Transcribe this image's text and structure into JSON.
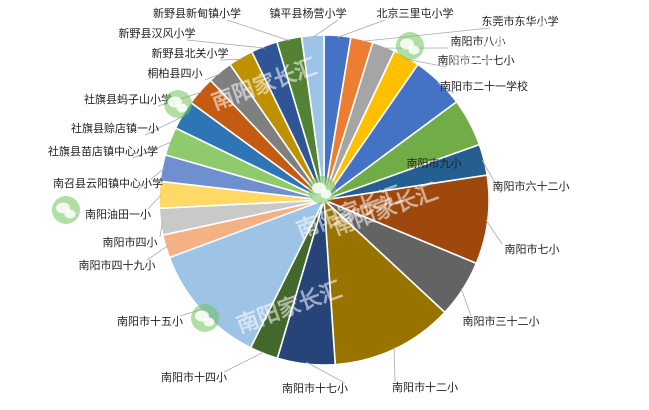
{
  "chart_data": {
    "type": "pie",
    "title": "",
    "slices": [
      {
        "label": "北京三里屯小学",
        "value": 3.0,
        "color": "#4472C4"
      },
      {
        "label": "东莞市东华小学",
        "value": 2.5,
        "color": "#ED7D31"
      },
      {
        "label": "南阳市八小",
        "value": 2.6,
        "color": "#A5A5A5"
      },
      {
        "label": "南阳市二十七小",
        "value": 3.0,
        "color": "#FFC000"
      },
      {
        "label": "南阳市二十一学校",
        "value": 6.0,
        "color": "#4472C4"
      },
      {
        "label": "南阳市九小",
        "value": 5.4,
        "color": "#70AD47"
      },
      {
        "label": "南阳市六十二小",
        "value": 3.5,
        "color": "#255E91"
      },
      {
        "label": "南阳市七小",
        "value": 10.0,
        "color": "#9E480E"
      },
      {
        "label": "南阳市三十二小",
        "value": 6.5,
        "color": "#636363"
      },
      {
        "label": "南阳市十二小",
        "value": 13.8,
        "color": "#997300"
      },
      {
        "label": "南阳市十七小",
        "value": 6.5,
        "color": "#264478"
      },
      {
        "label": "南阳市十四小",
        "value": 3.2,
        "color": "#43682B"
      },
      {
        "label": "南阳市十五小",
        "value": 13.8,
        "color": "#9DC3E6"
      },
      {
        "label": "南阳市四十九小",
        "value": 2.6,
        "color": "#F4B183"
      },
      {
        "label": "南阳市四小",
        "value": 3.0,
        "color": "#C9C9C9"
      },
      {
        "label": "南阳油田一小",
        "value": 3.0,
        "color": "#FFD966"
      },
      {
        "label": "南召县云阳镇中心小学",
        "value": 3.0,
        "color": "#6F8FD0"
      },
      {
        "label": "社旗县苗店镇中心小学",
        "value": 3.2,
        "color": "#8FCB6C"
      },
      {
        "label": "社旗县赊店镇一小",
        "value": 3.3,
        "color": "#2E75B6"
      },
      {
        "label": "社旗县蚂子山小学",
        "value": 3.3,
        "color": "#C55A11"
      },
      {
        "label": "桐柏县四小",
        "value": 2.8,
        "color": "#7F7F7F"
      },
      {
        "label": "新野县北关小学",
        "value": 2.8,
        "color": "#BF9000"
      },
      {
        "label": "新野县汉风小学",
        "value": 3.0,
        "color": "#2F5597"
      },
      {
        "label": "新野县新甸镇小学",
        "value": 2.8,
        "color": "#548235"
      },
      {
        "label": "镇平县杨营小学",
        "value": 2.5,
        "color": "#9DC3E6"
      }
    ],
    "start_angle_deg": 0,
    "direction": "clockwise",
    "legend": "none",
    "data_labels": "category names outside with leader lines"
  },
  "watermark": {
    "text": "南阳家长汇",
    "icon": "wechat-icon"
  }
}
